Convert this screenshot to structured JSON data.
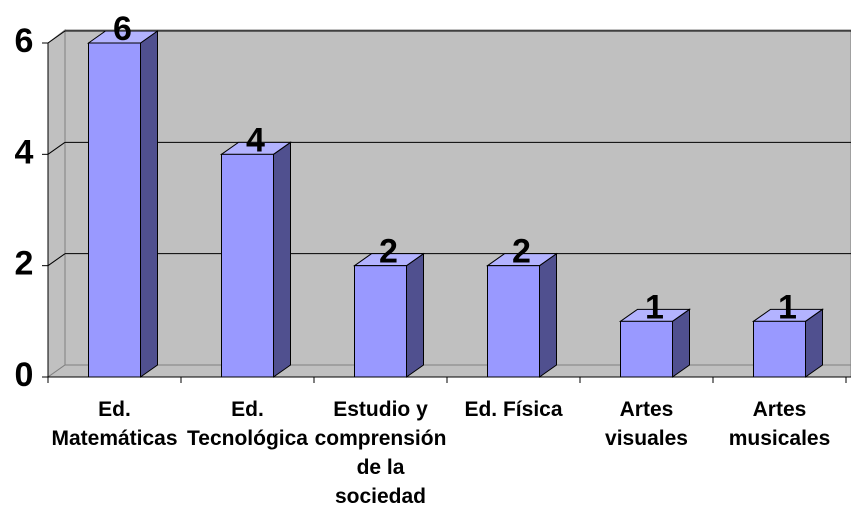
{
  "chart_data": {
    "type": "bar3d",
    "categories": [
      "Ed.\nMatemáticas",
      "Ed.\nTecnológica",
      "Estudio y\ncomprensión\nde la\nsociedad",
      "Ed. Física",
      "Artes\nvisuales",
      "Artes\nmusicales"
    ],
    "values": [
      6,
      4,
      2,
      2,
      1,
      1
    ],
    "color": "#9999ff",
    "ylim": [
      0,
      6
    ],
    "yticks": [
      0,
      2,
      4,
      6
    ],
    "grid": true
  }
}
